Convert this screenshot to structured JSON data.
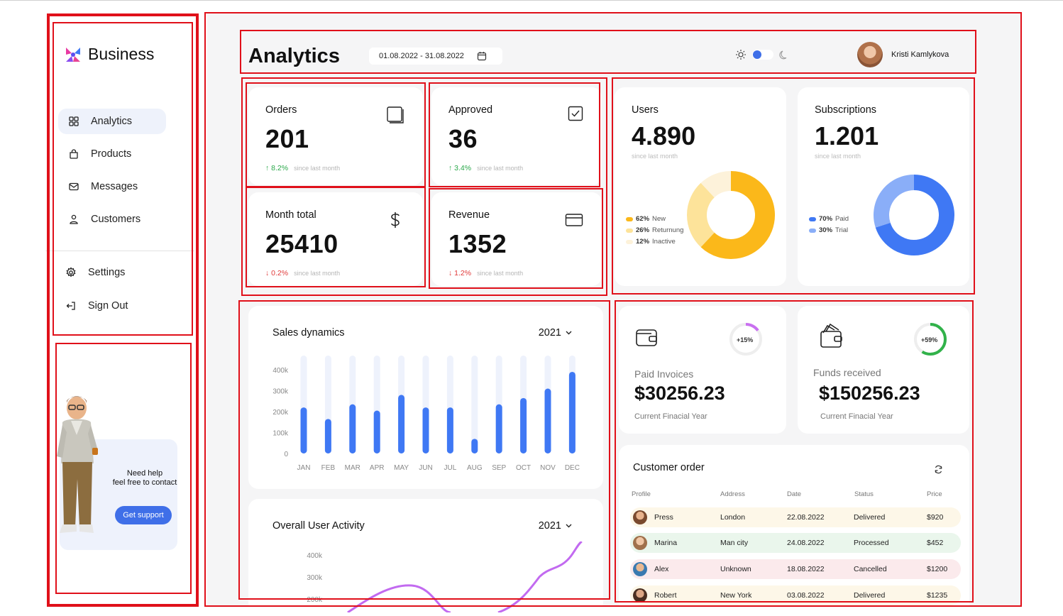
{
  "sidebar": {
    "brand": "Business",
    "nav": [
      {
        "label": "Analytics",
        "icon": "grid-icon",
        "active": true
      },
      {
        "label": "Products",
        "icon": "bag-icon",
        "active": false
      },
      {
        "label": "Messages",
        "icon": "mail-icon",
        "active": false
      },
      {
        "label": "Customers",
        "icon": "user-icon",
        "active": false
      }
    ],
    "bottom": [
      {
        "label": "Settings",
        "icon": "gear-icon"
      },
      {
        "label": "Sign Out",
        "icon": "sign-out-icon"
      }
    ],
    "help": {
      "line1": "Need help",
      "line2": "feel free to contact",
      "button": "Get support"
    }
  },
  "header": {
    "title": "Analytics",
    "date_range": "01.08.2022 - 31.08.2022",
    "user_name": "Kristi Kamlykova"
  },
  "kpis": [
    {
      "label": "Orders",
      "value": "201",
      "change": "8.2%",
      "direction": "up",
      "since": "since last month"
    },
    {
      "label": "Approved",
      "value": "36",
      "change": "3.4%",
      "direction": "up",
      "since": "since last month"
    },
    {
      "label": "Month total",
      "value": "25410",
      "change": "0.2%",
      "direction": "down",
      "since": "since last month"
    },
    {
      "label": "Revenue",
      "value": "1352",
      "change": "1.2%",
      "direction": "down",
      "since": "since last month"
    }
  ],
  "users": {
    "label": "Users",
    "value": "4.890",
    "since": "since last month",
    "legend": [
      {
        "pct": "62%",
        "name": "New",
        "color": "#fbb81a"
      },
      {
        "pct": "26%",
        "name": "Returnung",
        "color": "#fde39a"
      },
      {
        "pct": "12%",
        "name": "Inactive",
        "color": "#fdf2da"
      }
    ],
    "shares": [
      62,
      26,
      12
    ]
  },
  "subscriptions": {
    "label": "Subscriptions",
    "value": "1.201",
    "since": "since last month",
    "legend": [
      {
        "pct": "70%",
        "name": "Paid",
        "color": "#3f78f4"
      },
      {
        "pct": "30%",
        "name": "Trial",
        "color": "#8aaef8"
      }
    ],
    "shares": [
      70,
      30
    ]
  },
  "sales": {
    "title": "Sales dynamics",
    "year": "2021"
  },
  "activity": {
    "title": "Overall User Activity",
    "year": "2021",
    "yticks": [
      "400k",
      "300k",
      "200k"
    ]
  },
  "finance": [
    {
      "label": "Paid Invoices",
      "value": "$30256.23",
      "sub": "Current Finacial Year",
      "ring": "+15%",
      "ring_color": "#c970f0",
      "ring_pct": 15
    },
    {
      "label": "Funds received",
      "value": "$150256.23",
      "sub": "Current Finacial Year",
      "ring": "+59%",
      "ring_color": "#31b24a",
      "ring_pct": 59
    }
  ],
  "orders": {
    "title": "Customer order",
    "columns": [
      "Profile",
      "Address",
      "Date",
      "Status",
      "Price"
    ],
    "rows": [
      {
        "name": "Press",
        "address": "London",
        "date": "22.08.2022",
        "status": "Delivered",
        "price": "$920",
        "bg": "#fdf7e8"
      },
      {
        "name": "Marina",
        "address": "Man city",
        "date": "24.08.2022",
        "status": "Processed",
        "price": "$452",
        "bg": "#eaf6ec"
      },
      {
        "name": "Alex",
        "address": "Unknown",
        "date": "18.08.2022",
        "status": "Cancelled",
        "price": "$1200",
        "bg": "#fbeaec"
      },
      {
        "name": "Robert",
        "address": "New York",
        "date": "03.08.2022",
        "status": "Delivered",
        "price": "$1235",
        "bg": "#fdf7e8"
      }
    ]
  },
  "chart_data": [
    {
      "type": "bar",
      "title": "Sales dynamics",
      "categories": [
        "JAN",
        "FEB",
        "MAR",
        "APR",
        "MAY",
        "JUN",
        "JUL",
        "AUG",
        "SEP",
        "OCT",
        "NOV",
        "DEC"
      ],
      "values": [
        220,
        165,
        235,
        205,
        280,
        220,
        220,
        70,
        235,
        265,
        310,
        390
      ],
      "yticks": [
        "400k",
        "300k",
        "200k",
        "100k",
        "0"
      ],
      "ylim": [
        0,
        440
      ],
      "grid": false,
      "color": "#3f78f4",
      "track_color": "#eef2fc"
    },
    {
      "type": "line",
      "title": "Overall User Activity",
      "yticks": [
        "400k",
        "300k",
        "200k"
      ],
      "grid": false,
      "color": "#c26af0"
    }
  ]
}
